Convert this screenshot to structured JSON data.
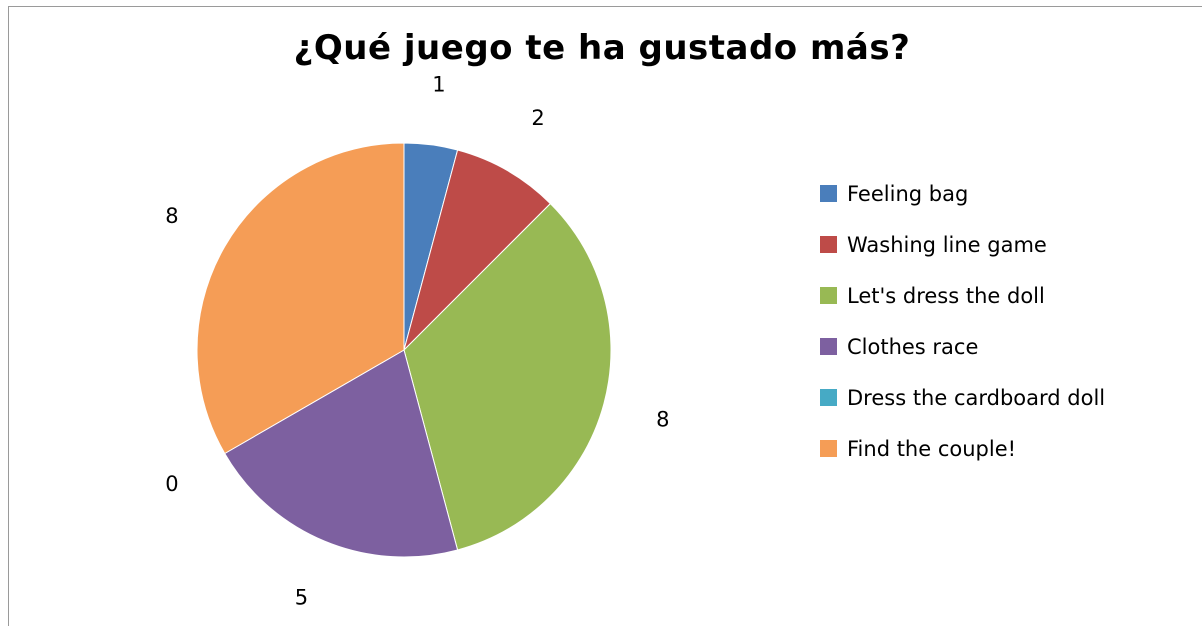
{
  "chart_data": {
    "type": "pie",
    "title": "¿Qué juego te ha gustado más?",
    "categories": [
      "Feeling bag",
      "Washing line game",
      "Let's dress the doll",
      "Clothes race",
      "Dress the cardboard doll",
      "Find the couple!"
    ],
    "values": [
      1,
      2,
      8,
      5,
      0,
      8
    ],
    "colors": [
      "#4a7ebb",
      "#be4b48",
      "#98b954",
      "#7d60a0",
      "#46aac5",
      "#f59d56"
    ],
    "legend_position": "right",
    "start_angle_deg": 0,
    "direction": "clockwise"
  }
}
